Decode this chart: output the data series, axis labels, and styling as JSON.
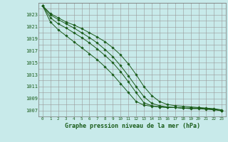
{
  "xlabel": "Graphe pression niveau de la mer (hPa)",
  "xlim": [
    -0.5,
    23.5
  ],
  "ylim": [
    1006.0,
    1025.0
  ],
  "yticks": [
    1007,
    1009,
    1011,
    1013,
    1015,
    1017,
    1019,
    1021,
    1023
  ],
  "xticks": [
    0,
    1,
    2,
    3,
    4,
    5,
    6,
    7,
    8,
    9,
    10,
    11,
    12,
    13,
    14,
    15,
    16,
    17,
    18,
    19,
    20,
    21,
    22,
    23
  ],
  "bg_color": "#c8eaea",
  "grid_color": "#aaaaaa",
  "line_color": "#1a5c1a",
  "series": [
    [
      1024.5,
      1023.2,
      1022.5,
      1021.8,
      1021.3,
      1020.7,
      1020.0,
      1019.3,
      1018.5,
      1017.5,
      1016.3,
      1014.8,
      1013.0,
      1011.0,
      1009.5,
      1008.5,
      1008.0,
      1007.8,
      1007.7,
      1007.6,
      1007.5,
      1007.4,
      1007.3,
      1007.1
    ],
    [
      1024.5,
      1023.0,
      1022.2,
      1021.5,
      1020.8,
      1020.0,
      1019.2,
      1018.3,
      1017.2,
      1016.0,
      1014.5,
      1012.8,
      1011.0,
      1009.3,
      1008.2,
      1007.8,
      1007.6,
      1007.5,
      1007.4,
      1007.3,
      1007.3,
      1007.2,
      1007.1,
      1007.0
    ],
    [
      1024.5,
      1022.5,
      1021.5,
      1020.8,
      1020.0,
      1019.2,
      1018.3,
      1017.3,
      1016.2,
      1015.0,
      1013.5,
      1011.8,
      1010.0,
      1008.3,
      1007.8,
      1007.6,
      1007.5,
      1007.5,
      1007.4,
      1007.4,
      1007.4,
      1007.3,
      1007.2,
      1007.0
    ],
    [
      1024.5,
      1021.8,
      1020.5,
      1019.5,
      1018.5,
      1017.5,
      1016.5,
      1015.5,
      1014.3,
      1013.0,
      1011.5,
      1010.0,
      1008.5,
      1007.9,
      1007.7,
      1007.6,
      1007.5,
      1007.5,
      1007.4,
      1007.4,
      1007.4,
      1007.3,
      1007.2,
      1006.9
    ]
  ]
}
